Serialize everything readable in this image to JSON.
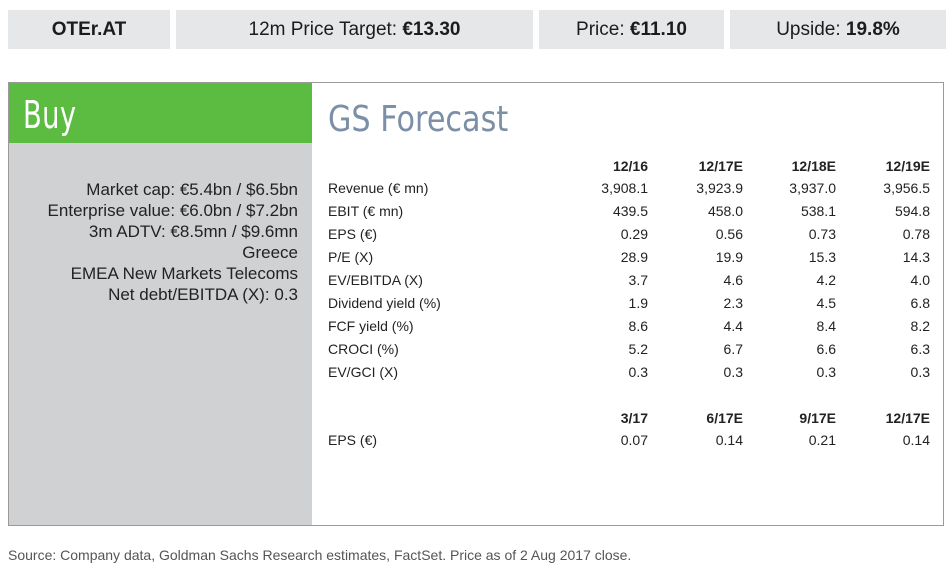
{
  "header": {
    "ticker": "OTEr.AT",
    "price_target_label": "12m Price Target: ",
    "price_target_value": "€13.30",
    "price_label": "Price: ",
    "price_value": "€11.10",
    "upside_label": "Upside: ",
    "upside_value": "19.8%"
  },
  "rating": "Buy",
  "left_info": [
    "Market cap: €5.4bn / $6.5bn",
    "Enterprise value: €6.0bn / $7.2bn",
    "3m ADTV: €8.5mn / $9.6mn",
    "Greece",
    "EMEA New Markets Telecoms",
    "Net debt/EBITDA (X): 0.3"
  ],
  "forecast": {
    "title": "GS Forecast",
    "annual_headers": [
      "12/16",
      "12/17E",
      "12/18E",
      "12/19E"
    ],
    "annual_rows": [
      {
        "label": "Revenue (€ mn)",
        "values": [
          "3,908.1",
          "3,923.9",
          "3,937.0",
          "3,956.5"
        ]
      },
      {
        "label": "EBIT (€ mn)",
        "values": [
          "439.5",
          "458.0",
          "538.1",
          "594.8"
        ]
      },
      {
        "label": "EPS (€)",
        "values": [
          "0.29",
          "0.56",
          "0.73",
          "0.78"
        ]
      },
      {
        "label": "P/E (X)",
        "values": [
          "28.9",
          "19.9",
          "15.3",
          "14.3"
        ]
      },
      {
        "label": "EV/EBITDA (X)",
        "values": [
          "3.7",
          "4.6",
          "4.2",
          "4.0"
        ]
      },
      {
        "label": "Dividend yield (%)",
        "values": [
          "1.9",
          "2.3",
          "4.5",
          "6.8"
        ]
      },
      {
        "label": "FCF yield (%)",
        "values": [
          "8.6",
          "4.4",
          "8.4",
          "8.2"
        ]
      },
      {
        "label": "CROCI (%)",
        "values": [
          "5.2",
          "6.7",
          "6.6",
          "6.3"
        ]
      },
      {
        "label": "EV/GCI (X)",
        "values": [
          "0.3",
          "0.3",
          "0.3",
          "0.3"
        ]
      }
    ],
    "quarterly_headers": [
      "3/17",
      "6/17E",
      "9/17E",
      "12/17E"
    ],
    "quarterly_rows": [
      {
        "label": "EPS (€)",
        "values": [
          "0.07",
          "0.14",
          "0.21",
          "0.14"
        ]
      }
    ]
  },
  "source": "Source: Company data, Goldman Sachs Research estimates, FactSet. Price as of 2 Aug 2017 close."
}
